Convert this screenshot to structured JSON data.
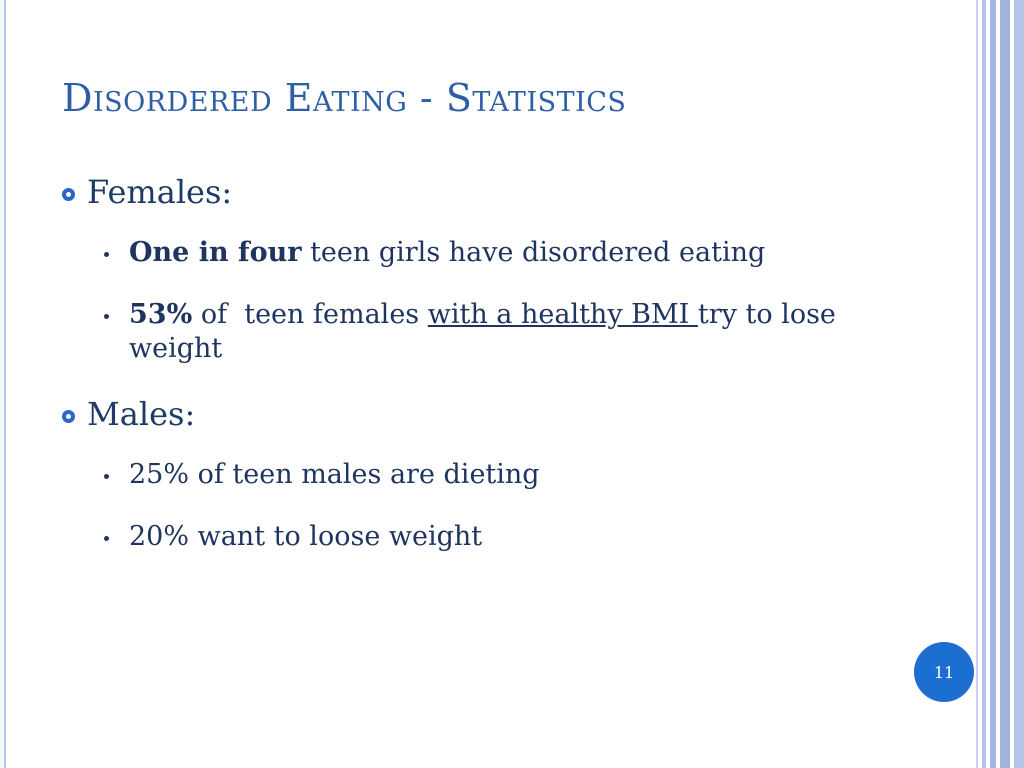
{
  "slide": {
    "title": "Disordered Eating - Statistics",
    "page_number": "11",
    "colors": {
      "title": "#2e5fa6",
      "bullet_ring": "#2a67c6",
      "page_badge": "#1b6fd1",
      "side_bars": "#a4b7e0"
    },
    "sections": [
      {
        "heading": "Females:",
        "items": [
          {
            "bold": "One in four",
            "rest": " teen girls have disordered eating"
          },
          {
            "bold": "53%",
            "mid": " of  teen females ",
            "underline": "with a healthy BMI ",
            "rest": "try to lose weight"
          }
        ]
      },
      {
        "heading": "Males:",
        "items": [
          {
            "text": "25% of teen males are dieting"
          },
          {
            "text": "20% want to loose weight"
          }
        ]
      }
    ]
  }
}
